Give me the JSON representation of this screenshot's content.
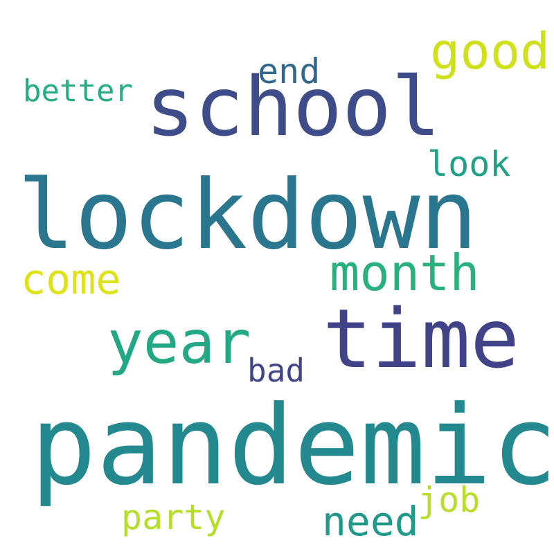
{
  "words": [
    {
      "text": "pandemic",
      "color": "#23898e"
    },
    {
      "text": "lockdown",
      "color": "#2a768e"
    },
    {
      "text": "school",
      "color": "#3e4c8a"
    },
    {
      "text": "time",
      "color": "#404388"
    },
    {
      "text": "year",
      "color": "#22a884"
    },
    {
      "text": "month",
      "color": "#2ab07f"
    },
    {
      "text": "good",
      "color": "#d0e11c"
    },
    {
      "text": "come",
      "color": "#dde318"
    },
    {
      "text": "need",
      "color": "#1f9a8a"
    },
    {
      "text": "party",
      "color": "#b5de2b"
    },
    {
      "text": "end",
      "color": "#31688e"
    },
    {
      "text": "look",
      "color": "#1fa188"
    },
    {
      "text": "job",
      "color": "#b8de29"
    },
    {
      "text": "better",
      "color": "#25ac82"
    },
    {
      "text": "bad",
      "color": "#414487"
    }
  ]
}
